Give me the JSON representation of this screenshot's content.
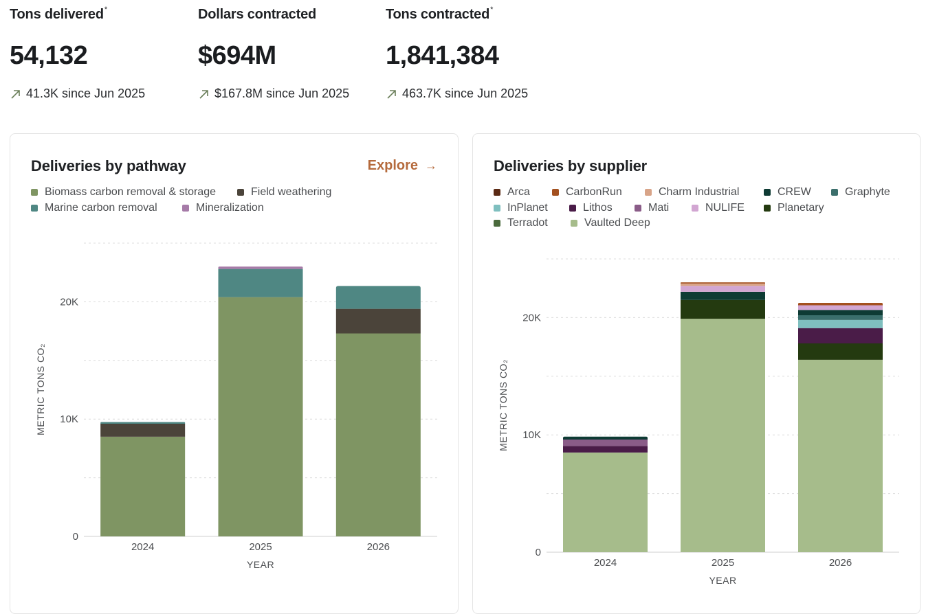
{
  "stats": [
    {
      "label": "Tons delivered",
      "asterisk": "*",
      "value": "54,132",
      "change": "41.3K since Jun 2025"
    },
    {
      "label": "Dollars contracted",
      "asterisk": "",
      "value": "$694M",
      "change": "$167.8M since Jun 2025"
    },
    {
      "label": "Tons contracted",
      "asterisk": "*",
      "value": "1,841,384",
      "change": "463.7K since Jun 2025"
    }
  ],
  "colors": {
    "accent": "#b56a3c",
    "change_arrow": "#6b7f5a"
  },
  "icons": {
    "change_arrow": "arrow-up-right-icon",
    "explore_arrow": "arrow-right-icon"
  },
  "pathway_card": {
    "title": "Deliveries by pathway",
    "explore_label": "Explore",
    "explore_arrow": "→"
  },
  "supplier_card": {
    "title": "Deliveries by supplier"
  },
  "chart_data": [
    {
      "type": "bar",
      "stacked": true,
      "title": "Deliveries by pathway",
      "xlabel": "YEAR",
      "ylabel": "METRIC TONS CO₂",
      "categories": [
        "2024",
        "2025",
        "2026"
      ],
      "ylim": [
        0,
        25000
      ],
      "yticks": [
        0,
        10000,
        20000
      ],
      "ytick_labels": [
        "0",
        "10K",
        "20K"
      ],
      "grid": true,
      "legend": "top-left",
      "series": [
        {
          "name": "Biomass carbon removal & storage",
          "color": "#7f9563",
          "values": [
            8500,
            20400,
            17300
          ]
        },
        {
          "name": "Field weathering",
          "color": "#4b443a",
          "values": [
            1100,
            0,
            2100
          ]
        },
        {
          "name": "Marine carbon removal",
          "color": "#4f8783",
          "values": [
            150,
            2400,
            1950
          ]
        },
        {
          "name": "Mineralization",
          "color": "#a67ba8",
          "values": [
            0,
            200,
            0
          ]
        }
      ]
    },
    {
      "type": "bar",
      "stacked": true,
      "title": "Deliveries by supplier",
      "xlabel": "YEAR",
      "ylabel": "METRIC TONS CO₂",
      "categories": [
        "2024",
        "2025",
        "2026"
      ],
      "ylim": [
        0,
        25000
      ],
      "yticks": [
        0,
        10000,
        20000
      ],
      "ytick_labels": [
        "0",
        "10K",
        "20K"
      ],
      "grid": true,
      "legend": "top-left",
      "series": [
        {
          "name": "Vaulted Deep",
          "color": "#a6bc8b",
          "values": [
            8500,
            19900,
            16400
          ]
        },
        {
          "name": "Terradot",
          "color": "#4a6a3c",
          "values": [
            0,
            0,
            0
          ]
        },
        {
          "name": "Planetary",
          "color": "#243a10",
          "values": [
            0,
            1600,
            1400
          ]
        },
        {
          "name": "Lithos",
          "color": "#4a1c48",
          "values": [
            550,
            0,
            1300
          ]
        },
        {
          "name": "Mati",
          "color": "#8a5c88",
          "values": [
            550,
            0,
            0
          ]
        },
        {
          "name": "InPlanet",
          "color": "#7fbfbf",
          "values": [
            0,
            0,
            700
          ]
        },
        {
          "name": "Graphyte",
          "color": "#3b6f6c",
          "values": [
            0,
            0,
            400
          ]
        },
        {
          "name": "CREW",
          "color": "#0e3b34",
          "values": [
            250,
            700,
            450
          ]
        },
        {
          "name": "NULIFE",
          "color": "#d2a6d2",
          "values": [
            0,
            500,
            400
          ]
        },
        {
          "name": "Charm Industrial",
          "color": "#d8a488",
          "values": [
            0,
            200,
            0
          ]
        },
        {
          "name": "CarbonRun",
          "color": "#a3501f",
          "values": [
            0,
            100,
            200
          ]
        },
        {
          "name": "Arca",
          "color": "#5b2a14",
          "values": [
            0,
            0,
            0
          ]
        }
      ],
      "legend_order": [
        "Arca",
        "CarbonRun",
        "Charm Industrial",
        "CREW",
        "Graphyte",
        "InPlanet",
        "Lithos",
        "Mati",
        "NULIFE",
        "Planetary",
        "Terradot",
        "Vaulted Deep"
      ]
    }
  ]
}
